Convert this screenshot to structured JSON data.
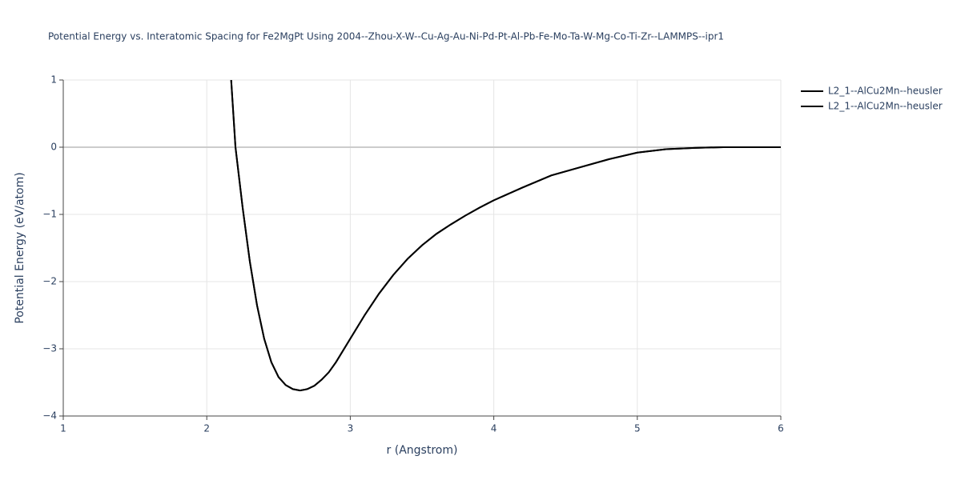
{
  "chart_data": {
    "type": "line",
    "title": "Potential Energy vs. Interatomic Spacing for Fe2MgPt Using 2004--Zhou-X-W--Cu-Ag-Au-Ni-Pd-Pt-Al-Pb-Fe-Mo-Ta-W-Mg-Co-Ti-Zr--LAMMPS--ipr1",
    "x_label": "r (Angstrom)",
    "y_label": "Potential Energy (eV/atom)",
    "xlim": [
      1,
      6
    ],
    "ylim": [
      -4,
      1
    ],
    "xticks": [
      1,
      2,
      3,
      4,
      5,
      6
    ],
    "yticks": [
      1,
      0,
      {
        "value": -1,
        "label": "−1"
      },
      {
        "value": -2,
        "label": "−2"
      },
      {
        "value": -3,
        "label": "−3"
      },
      {
        "value": -4,
        "label": "−4"
      }
    ],
    "grid": true,
    "x": [
      2.17,
      2.2,
      2.25,
      2.3,
      2.35,
      2.4,
      2.45,
      2.5,
      2.55,
      2.6,
      2.65,
      2.7,
      2.75,
      2.8,
      2.85,
      2.9,
      3.0,
      3.1,
      3.2,
      3.3,
      3.4,
      3.5,
      3.6,
      3.7,
      3.8,
      3.9,
      4.0,
      4.2,
      4.4,
      4.6,
      4.8,
      5.0,
      5.2,
      5.4,
      5.6,
      6.0
    ],
    "series": [
      {
        "name": "L2_1--AlCu2Mn--heusler",
        "color": "#000000",
        "values": [
          1.0,
          0.0,
          -0.9,
          -1.7,
          -2.35,
          -2.85,
          -3.2,
          -3.42,
          -3.54,
          -3.6,
          -3.62,
          -3.6,
          -3.55,
          -3.46,
          -3.35,
          -3.2,
          -2.85,
          -2.5,
          -2.18,
          -1.9,
          -1.66,
          -1.46,
          -1.29,
          -1.15,
          -1.02,
          -0.9,
          -0.79,
          -0.6,
          -0.42,
          -0.3,
          -0.18,
          -0.08,
          -0.03,
          -0.01,
          0,
          0
        ]
      },
      {
        "name": "L2_1--AlCu2Mn--heusler",
        "color": "#000000",
        "values": [
          1.0,
          0.0,
          -0.9,
          -1.7,
          -2.35,
          -2.85,
          -3.2,
          -3.42,
          -3.54,
          -3.6,
          -3.62,
          -3.6,
          -3.55,
          -3.46,
          -3.35,
          -3.2,
          -2.85,
          -2.5,
          -2.18,
          -1.9,
          -1.66,
          -1.46,
          -1.29,
          -1.15,
          -1.02,
          -0.9,
          -0.79,
          -0.6,
          -0.42,
          -0.3,
          -0.18,
          -0.08,
          -0.03,
          -0.01,
          0,
          0
        ]
      }
    ]
  }
}
